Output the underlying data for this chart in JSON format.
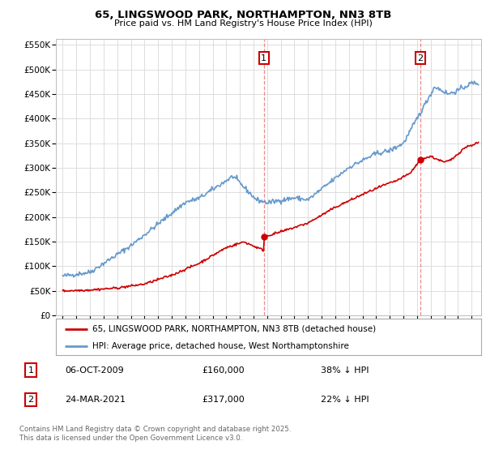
{
  "title": "65, LINGSWOOD PARK, NORTHAMPTON, NN3 8TB",
  "subtitle": "Price paid vs. HM Land Registry's House Price Index (HPI)",
  "legend_line1": "65, LINGSWOOD PARK, NORTHAMPTON, NN3 8TB (detached house)",
  "legend_line2": "HPI: Average price, detached house, West Northamptonshire",
  "transaction1_date": "06-OCT-2009",
  "transaction1_price": "£160,000",
  "transaction1_hpi": "38% ↓ HPI",
  "transaction2_date": "24-MAR-2021",
  "transaction2_price": "£317,000",
  "transaction2_hpi": "22% ↓ HPI",
  "footer": "Contains HM Land Registry data © Crown copyright and database right 2025.\nThis data is licensed under the Open Government Licence v3.0.",
  "vline1_x": 2009.76,
  "vline2_x": 2021.23,
  "ylim": [
    0,
    562500
  ],
  "xlim": [
    1994.5,
    2025.7
  ],
  "price_color": "#cc0000",
  "hpi_color": "#6699cc",
  "vline_color": "#ee8888",
  "background_color": "#ffffff",
  "grid_color": "#dddddd"
}
